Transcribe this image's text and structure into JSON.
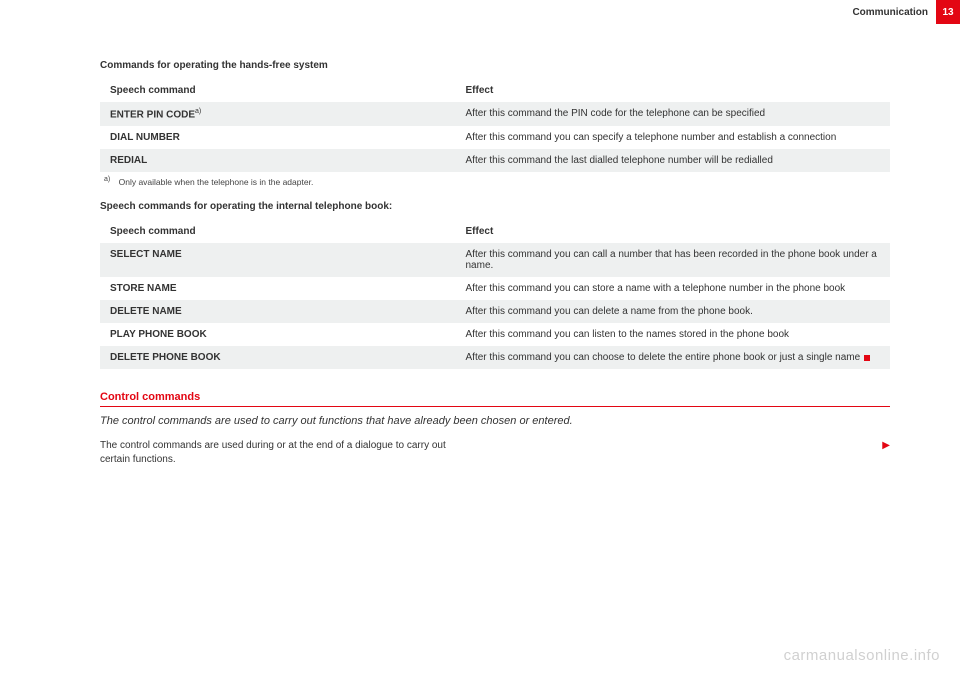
{
  "header": {
    "title": "Communication",
    "page_number": "13"
  },
  "section1": {
    "caption": "Commands for operating the hands-free system",
    "col_speech": "Speech command",
    "col_effect": "Effect",
    "rows": [
      {
        "cmd": "ENTER PIN CODE",
        "sup": "a)",
        "effect": "After this command the PIN code for the telephone can be specified"
      },
      {
        "cmd": "DIAL NUMBER",
        "sup": "",
        "effect": "After this command you can specify a telephone number and establish a connection"
      },
      {
        "cmd": "REDIAL",
        "sup": "",
        "effect": "After this command the last dialled telephone number will be redialled"
      }
    ],
    "footnote_mark": "a)",
    "footnote_text": "Only available when the telephone is in the adapter."
  },
  "section2": {
    "caption": "Speech commands for operating the internal telephone book:",
    "col_speech": "Speech command",
    "col_effect": "Effect",
    "rows": [
      {
        "cmd": "SELECT NAME",
        "effect": "After this command you can call a number that has been recorded in the phone book under a name."
      },
      {
        "cmd": "STORE NAME",
        "effect": "After this command you can store a name with a telephone number in the phone book"
      },
      {
        "cmd": "DELETE NAME",
        "effect": "After this command you can delete a name from the phone book."
      },
      {
        "cmd": "PLAY PHONE BOOK",
        "effect": "After this command you can listen to the names stored in the phone book"
      },
      {
        "cmd": "DELETE PHONE BOOK",
        "effect": "After this command you can choose to delete the entire phone book or just a single name"
      }
    ]
  },
  "control": {
    "heading": "Control commands",
    "lead": "The control commands are used to carry out functions that have already been chosen or entered.",
    "body": "The control commands are used during or at the end of a dialogue to carry out certain functions."
  },
  "watermark": "carmanualsonline.info"
}
